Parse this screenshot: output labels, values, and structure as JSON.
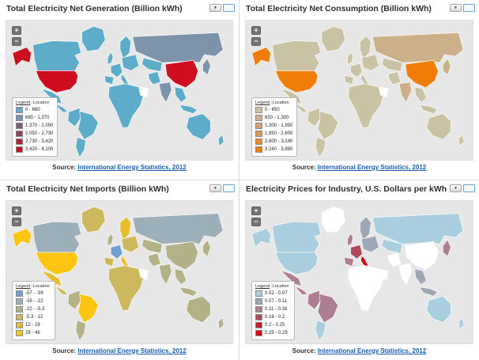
{
  "colors": {
    "ocean": "#e7e7e7",
    "panel_bg": "#ffffff",
    "no_data": "#ffffff",
    "link": "#1a5dad"
  },
  "controls": {
    "menu_icon": "▼",
    "zoom_in": "+",
    "zoom_out": "−"
  },
  "legend_tabs": {
    "legend": "Legend",
    "location": "Location",
    "separator": "|"
  },
  "source": {
    "prefix": "Source:",
    "link": "International Energy Statistics, 2012"
  },
  "panels": [
    {
      "title": "Total Electricity Net Generation (Billion kWh)",
      "legend_items": [
        {
          "label": "0 - 680",
          "color": "#5cacca"
        },
        {
          "label": "680 - 1,370",
          "color": "#7c93a9"
        },
        {
          "label": "1,370 - 2,050",
          "color": "#73627a"
        },
        {
          "label": "2,050 - 2,730",
          "color": "#8f4152"
        },
        {
          "label": "2,730 - 3,420",
          "color": "#b02337"
        },
        {
          "label": "3,420 - 4,100",
          "color": "#ce0e1f"
        }
      ],
      "region_fills": {
        "greenland": "#5cacca",
        "alaska": "#ce0e1f",
        "canada": "#5cacca",
        "usa": "#ce0e1f",
        "mexico": "#5cacca",
        "centralam": "#5cacca",
        "southam_nw": "#5cacca",
        "brazil": "#5cacca",
        "argentina": "#5cacca",
        "uk": "#5cacca",
        "scandinavia": "#5cacca",
        "westeurope": "#5cacca",
        "iberia": "#5cacca",
        "italy": "#5cacca",
        "easteurope": "#5cacca",
        "africa": "#5cacca",
        "saudi": "#ffffff",
        "russia": "#7c93a9",
        "centralasia": "#5cacca",
        "mideast": "#5cacca",
        "india": "#7c93a9",
        "china": "#ce0e1f",
        "sea": "#5cacca",
        "indonesia": "#5cacca",
        "japan": "#7c93a9",
        "australia": "#5cacca",
        "newzealand": "#5cacca"
      }
    },
    {
      "title": "Total Electricity Net Consumption (Billion kWh)",
      "legend_items": [
        {
          "label": "0 - 650",
          "color": "#c9c2a3"
        },
        {
          "label": "650 - 1,300",
          "color": "#cbb089"
        },
        {
          "label": "1,300 - 1,950",
          "color": "#d2a372"
        },
        {
          "label": "1,950 - 2,600",
          "color": "#dc9755"
        },
        {
          "label": "2,600 - 3,240",
          "color": "#e88a2d"
        },
        {
          "label": "3,240 - 3,890",
          "color": "#f07d05"
        }
      ],
      "region_fills": {
        "greenland": "#c9c2a3",
        "alaska": "#f07d05",
        "canada": "#c9c2a3",
        "usa": "#f07d05",
        "mexico": "#c9c2a3",
        "centralam": "#c9c2a3",
        "southam_nw": "#c9c2a3",
        "brazil": "#c9c2a3",
        "argentina": "#c9c2a3",
        "uk": "#c9c2a3",
        "scandinavia": "#c9c2a3",
        "westeurope": "#c9c2a3",
        "iberia": "#c9c2a3",
        "italy": "#c9c2a3",
        "easteurope": "#c9c2a3",
        "africa": "#c9c2a3",
        "saudi": "#ffffff",
        "russia": "#cbb089",
        "centralasia": "#c9c2a3",
        "mideast": "#c9c2a3",
        "india": "#cbb089",
        "china": "#f07d05",
        "sea": "#c9c2a3",
        "indonesia": "#c9c2a3",
        "japan": "#cbb089",
        "australia": "#c9c2a3",
        "newzealand": "#c9c2a3"
      }
    },
    {
      "title": "Total Electricity Net Imports (Billion kWh)",
      "legend_items": [
        {
          "label": "-57 - -39",
          "color": "#6f9fd0"
        },
        {
          "label": "-39 - -22",
          "color": "#9dafb9"
        },
        {
          "label": "-22 - -5.3",
          "color": "#b3b188"
        },
        {
          "label": "-5.3 - 12",
          "color": "#cdb85e"
        },
        {
          "label": "12 - 29",
          "color": "#e8be2e"
        },
        {
          "label": "29 - 46",
          "color": "#fdc50f"
        }
      ],
      "region_fills": {
        "greenland": "#cdb85e",
        "alaska": "#fdc50f",
        "canada": "#9dafb9",
        "usa": "#fdc50f",
        "mexico": "#e8be2e",
        "centralam": "#cdb85e",
        "southam_nw": "#b3b188",
        "brazil": "#fdc50f",
        "argentina": "#b3b188",
        "uk": "#b3b188",
        "scandinavia": "#e8be2e",
        "westeurope": "#6f9fd0",
        "iberia": "#cdb85e",
        "italy": "#e8be2e",
        "easteurope": "#cdb85e",
        "africa": "#cdb85e",
        "saudi": "#ffffff",
        "russia": "#9dafb9",
        "centralasia": "#b3b188",
        "mideast": "#b3b188",
        "india": "#b3b188",
        "china": "#b3b188",
        "sea": "#b3b188",
        "indonesia": "#b3b188",
        "japan": "#b3b188",
        "australia": "#b3b188",
        "newzealand": "#b3b188"
      }
    },
    {
      "title": "Electricity Prices for Industry, U.S. Dollars per kWh",
      "legend_items": [
        {
          "label": "0.02 - 0.07",
          "color": "#a9cede"
        },
        {
          "label": "0.07 - 0.11",
          "color": "#9fa6b4"
        },
        {
          "label": "0.11 - 0.16",
          "color": "#ad7d92"
        },
        {
          "label": "0.16 - 0.2",
          "color": "#b04a5e"
        },
        {
          "label": "0.2 - 0.25",
          "color": "#c21e30"
        },
        {
          "label": "0.25 - 0.29",
          "color": "#d60313"
        }
      ],
      "region_fills": {
        "greenland": "#ffffff",
        "alaska": "#a9cede",
        "canada": "#a9cede",
        "usa": "#a9cede",
        "mexico": "#ad7d92",
        "centralam": "#ad7d92",
        "southam_nw": "#ad7d92",
        "brazil": "#ad7d92",
        "argentina": "#a9cede",
        "uk": "#ad7d92",
        "scandinavia": "#9fa6b4",
        "westeurope": "#b04a5e",
        "iberia": "#ad7d92",
        "italy": "#d60313",
        "easteurope": "#9fa6b4",
        "africa": "#ffffff",
        "saudi": "#ffffff",
        "russia": "#a9cede",
        "centralasia": "#a9cede",
        "mideast": "#ffffff",
        "india": "#ffffff",
        "china": "#ffffff",
        "sea": "#9fa6b4",
        "indonesia": "#9fa6b4",
        "japan": "#ad7d92",
        "australia": "#a9cede",
        "newzealand": "#a9cede"
      }
    }
  ]
}
